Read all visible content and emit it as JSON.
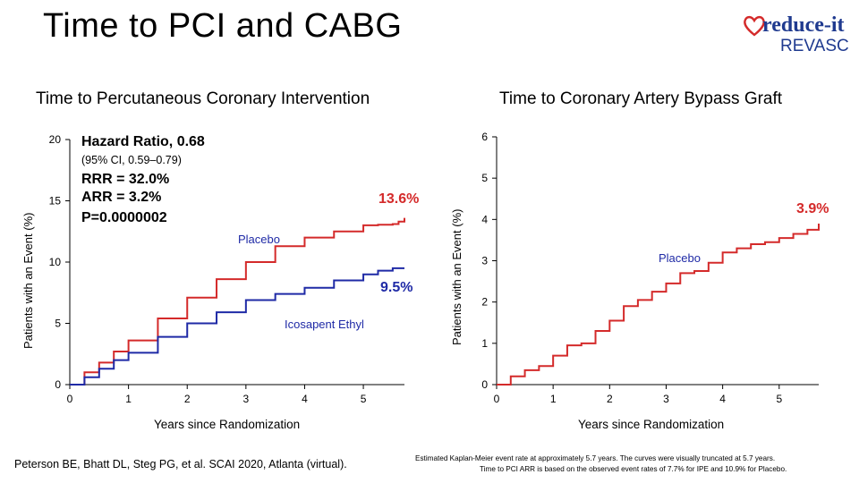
{
  "slide_title": "Time to PCI and CABG",
  "logo": {
    "line1": "reduce-it",
    "line2": "REVASC",
    "heart_color": "#d42a2a",
    "text_color": "#1f3a8f"
  },
  "colors": {
    "placebo": "#d42a2a",
    "icosapent_ethyl": "#1f2aa6",
    "label_blue": "#1f2aa6"
  },
  "pci_panel": {
    "title": "Time to Percutaneous Coronary Intervention",
    "hazard_ratio": "Hazard Ratio, 0.68",
    "ci": "(95% CI, 0.59–0.79)",
    "rrr": "RRR = 32.0%",
    "arr": "ARR = 3.2%",
    "p_value": "P=0.0000002",
    "placebo_pct": "13.6%",
    "ipe_pct": "9.5%",
    "placebo_label": "Placebo",
    "ipe_label": "Icosapent Ethyl"
  },
  "cabg_panel": {
    "title": "Time to Coronary Artery Bypass Graft",
    "placebo_pct": "3.9%",
    "placebo_label": "Placebo"
  },
  "citation": "Peterson BE, Bhatt DL, Steg PG, et al. SCAI 2020, Atlanta (virtual).",
  "footnote_line1": "Estimated Kaplan-Meier event rate at approximately 5.7 years. The curves were visually truncated at 5.7 years.",
  "footnote_line2": "Time to PCI ARR is based on the observed event rates of 7.7% for IPE and 10.9% for Placebo.",
  "chart_data": [
    {
      "type": "line",
      "title": "Time to Percutaneous Coronary Intervention",
      "xlabel": "Years since Randomization",
      "ylabel": "Patients with an Event (%)",
      "xlim": [
        0,
        5.7
      ],
      "ylim": [
        0,
        20
      ],
      "xticks": [
        "0",
        "1",
        "2",
        "3",
        "4",
        "5"
      ],
      "yticks": [
        "0",
        "5",
        "10",
        "15",
        "20"
      ],
      "series": [
        {
          "name": "Placebo",
          "color": "#d42a2a",
          "x": [
            0,
            0.25,
            0.5,
            0.75,
            1.0,
            1.5,
            2.0,
            2.5,
            3.0,
            3.5,
            4.0,
            4.5,
            5.0,
            5.25,
            5.5,
            5.6,
            5.7
          ],
          "y": [
            0,
            1.0,
            1.8,
            2.7,
            3.6,
            5.4,
            7.1,
            8.6,
            10.0,
            11.3,
            12.0,
            12.5,
            13.0,
            13.05,
            13.1,
            13.3,
            13.6
          ]
        },
        {
          "name": "Icosapent Ethyl",
          "color": "#1f2aa6",
          "x": [
            0,
            0.25,
            0.5,
            0.75,
            1.0,
            1.5,
            2.0,
            2.5,
            3.0,
            3.5,
            4.0,
            4.5,
            5.0,
            5.25,
            5.5,
            5.6,
            5.7
          ],
          "y": [
            0,
            0.6,
            1.3,
            2.0,
            2.6,
            3.9,
            5.0,
            5.9,
            6.9,
            7.4,
            7.9,
            8.5,
            9.0,
            9.3,
            9.5,
            9.5,
            9.5
          ]
        }
      ]
    },
    {
      "type": "line",
      "title": "Time to Coronary Artery Bypass Graft",
      "xlabel": "Years since Randomization",
      "ylabel": "Patients with an Event (%)",
      "xlim": [
        0,
        5.7
      ],
      "ylim": [
        0,
        6
      ],
      "xticks": [
        "0",
        "1",
        "2",
        "3",
        "4",
        "5"
      ],
      "yticks": [
        "0",
        "1",
        "2",
        "3",
        "4",
        "5",
        "6"
      ],
      "series": [
        {
          "name": "Placebo",
          "color": "#d42a2a",
          "x": [
            0,
            0.25,
            0.5,
            0.75,
            1.0,
            1.25,
            1.5,
            1.75,
            2.0,
            2.25,
            2.5,
            2.75,
            3.0,
            3.25,
            3.5,
            3.75,
            4.0,
            4.25,
            4.5,
            4.75,
            5.0,
            5.25,
            5.5,
            5.7
          ],
          "y": [
            0,
            0.2,
            0.35,
            0.45,
            0.7,
            0.95,
            1.0,
            1.3,
            1.55,
            1.9,
            2.05,
            2.25,
            2.45,
            2.7,
            2.75,
            2.95,
            3.2,
            3.3,
            3.4,
            3.45,
            3.55,
            3.65,
            3.75,
            3.9
          ]
        }
      ]
    }
  ]
}
